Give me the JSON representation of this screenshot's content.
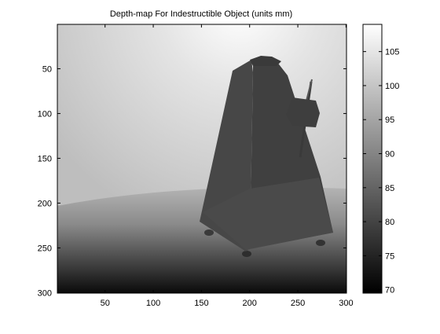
{
  "chart_data": {
    "type": "heatmap",
    "title": "Depth-map For Indestructible Object (units mm)",
    "xlabel": "",
    "ylabel": "",
    "x_ticks": [
      50,
      100,
      150,
      200,
      250,
      300
    ],
    "y_ticks": [
      50,
      100,
      150,
      200,
      250,
      300
    ],
    "xlim": [
      1,
      300
    ],
    "ylim": [
      1,
      300
    ],
    "y_direction": "reversed",
    "colormap": "gray",
    "colorbar": {
      "ticks": [
        70,
        75,
        80,
        85,
        90,
        95,
        100,
        105
      ],
      "range": [
        69.5,
        109
      ]
    },
    "depth_values": {
      "object_mean": 82,
      "floor_near": 69.5,
      "floor_far": 88,
      "wall_center": 109,
      "wall_edge": 92
    }
  }
}
